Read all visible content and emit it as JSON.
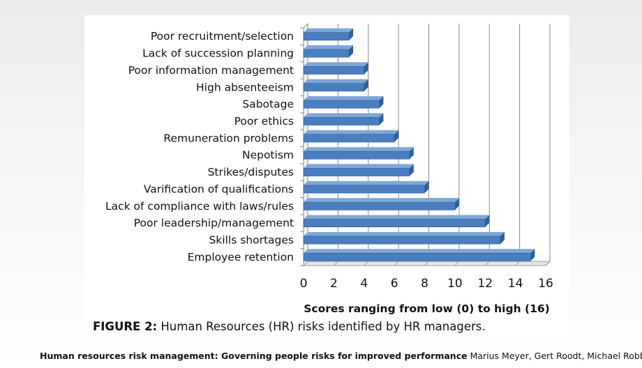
{
  "chart_data": {
    "type": "bar",
    "orientation": "horizontal",
    "categories": [
      "Poor recruitment/selection",
      "Lack of succession planning",
      "Poor information management",
      "High absenteeism",
      "Sabotage",
      "Poor ethics",
      "Remuneration problems",
      "Nepotism",
      "Strikes/disputes",
      "Varification of qualifications",
      "Lack of compliance with laws/rules",
      "Poor leadership/management",
      "Skills shortages",
      "Employee retention"
    ],
    "values": [
      3,
      3,
      4,
      4,
      5,
      5,
      6,
      7,
      7,
      8,
      10,
      12,
      13,
      15
    ],
    "xlabel": "Scores ranging from low (0) to high (16)",
    "ylabel": "",
    "xlim": [
      0,
      16
    ],
    "xticks": [
      "0",
      "2",
      "4",
      "6",
      "8",
      "10",
      "12",
      "14",
      "16"
    ],
    "grid": "vertical",
    "legend": "none",
    "bar_color": "#4a7ec0",
    "bar_dark": "#2f5f99",
    "bar_light": "#7ea7d8"
  },
  "caption": {
    "prefix": "FIGURE 2:",
    "text": " Human Resources (HR) risks identified by HR managers."
  },
  "citation": {
    "title": "Human resources risk management: Governing people risks for improved performance",
    "authors": " Marius Meyer, Gert Roodt, Michael Robbins"
  }
}
